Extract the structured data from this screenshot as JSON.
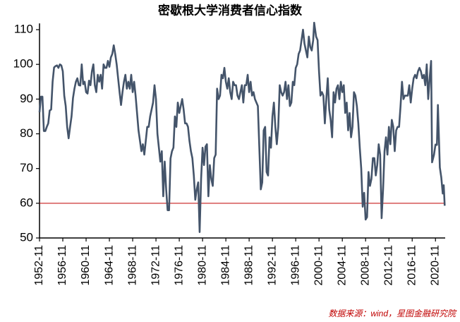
{
  "chart_data": {
    "type": "line",
    "title": "密歇根大学消费者信心指数",
    "source": "数据来源：wind，星图金融研究院",
    "x": [
      "1952-11",
      "1953-02",
      "1953-05",
      "1953-08",
      "1953-11",
      "1954-02",
      "1954-05",
      "1954-08",
      "1954-11",
      "1955-02",
      "1955-05",
      "1955-08",
      "1955-11",
      "1956-02",
      "1956-05",
      "1956-08",
      "1956-11",
      "1957-02",
      "1957-05",
      "1957-08",
      "1957-11",
      "1958-02",
      "1958-05",
      "1958-08",
      "1958-11",
      "1959-02",
      "1959-05",
      "1959-08",
      "1959-11",
      "1960-02",
      "1960-05",
      "1960-08",
      "1960-11",
      "1961-02",
      "1961-05",
      "1961-08",
      "1961-11",
      "1962-02",
      "1962-05",
      "1962-08",
      "1962-11",
      "1963-02",
      "1963-05",
      "1963-08",
      "1963-11",
      "1964-02",
      "1964-05",
      "1964-08",
      "1964-11",
      "1965-02",
      "1965-05",
      "1965-08",
      "1965-11",
      "1966-02",
      "1966-05",
      "1966-08",
      "1966-11",
      "1967-02",
      "1967-05",
      "1967-08",
      "1967-11",
      "1968-02",
      "1968-05",
      "1968-08",
      "1968-11",
      "1969-02",
      "1969-05",
      "1969-08",
      "1969-11",
      "1970-02",
      "1970-05",
      "1970-08",
      "1970-11",
      "1971-02",
      "1971-05",
      "1971-08",
      "1971-11",
      "1972-02",
      "1972-05",
      "1972-08",
      "1972-11",
      "1973-02",
      "1973-05",
      "1973-08",
      "1973-11",
      "1974-02",
      "1974-05",
      "1974-08",
      "1974-11",
      "1975-02",
      "1975-05",
      "1975-08",
      "1975-11",
      "1976-02",
      "1976-05",
      "1976-08",
      "1976-11",
      "1977-02",
      "1977-05",
      "1977-08",
      "1977-11",
      "1978-02",
      "1978-05",
      "1978-08",
      "1978-11",
      "1979-02",
      "1979-05",
      "1979-08",
      "1979-11",
      "1980-02",
      "1980-05",
      "1980-08",
      "1980-11",
      "1981-02",
      "1981-05",
      "1981-08",
      "1981-11",
      "1982-02",
      "1982-05",
      "1982-08",
      "1982-11",
      "1983-02",
      "1983-05",
      "1983-08",
      "1983-11",
      "1984-02",
      "1984-05",
      "1984-08",
      "1984-11",
      "1985-02",
      "1985-05",
      "1985-08",
      "1985-11",
      "1986-02",
      "1986-05",
      "1986-08",
      "1986-11",
      "1987-02",
      "1987-05",
      "1987-08",
      "1987-11",
      "1988-02",
      "1988-05",
      "1988-08",
      "1988-11",
      "1989-02",
      "1989-05",
      "1989-08",
      "1989-11",
      "1990-02",
      "1990-05",
      "1990-08",
      "1990-11",
      "1991-02",
      "1991-05",
      "1991-08",
      "1991-11",
      "1992-02",
      "1992-05",
      "1992-08",
      "1992-11",
      "1993-02",
      "1993-05",
      "1993-08",
      "1993-11",
      "1994-02",
      "1994-05",
      "1994-08",
      "1994-11",
      "1995-02",
      "1995-05",
      "1995-08",
      "1995-11",
      "1996-02",
      "1996-05",
      "1996-08",
      "1996-11",
      "1997-02",
      "1997-05",
      "1997-08",
      "1997-11",
      "1998-02",
      "1998-05",
      "1998-08",
      "1998-11",
      "1999-02",
      "1999-05",
      "1999-08",
      "1999-11",
      "2000-01",
      "2000-05",
      "2000-08",
      "2000-11",
      "2001-02",
      "2001-05",
      "2001-08",
      "2001-11",
      "2002-02",
      "2002-05",
      "2002-08",
      "2002-11",
      "2003-02",
      "2003-05",
      "2003-08",
      "2003-11",
      "2004-02",
      "2004-05",
      "2004-08",
      "2004-11",
      "2005-02",
      "2005-05",
      "2005-08",
      "2005-11",
      "2006-02",
      "2006-05",
      "2006-08",
      "2006-11",
      "2007-02",
      "2007-05",
      "2007-08",
      "2007-11",
      "2008-02",
      "2008-05",
      "2008-08",
      "2008-11",
      "2009-02",
      "2009-05",
      "2009-08",
      "2009-11",
      "2010-02",
      "2010-05",
      "2010-08",
      "2010-11",
      "2011-02",
      "2011-05",
      "2011-08",
      "2011-11",
      "2012-02",
      "2012-05",
      "2012-08",
      "2012-11",
      "2013-02",
      "2013-05",
      "2013-08",
      "2013-11",
      "2014-02",
      "2014-05",
      "2014-08",
      "2014-11",
      "2015-02",
      "2015-05",
      "2015-08",
      "2015-11",
      "2016-02",
      "2016-05",
      "2016-08",
      "2016-11",
      "2017-02",
      "2017-05",
      "2017-08",
      "2017-11",
      "2018-02",
      "2018-05",
      "2018-08",
      "2018-11",
      "2019-02",
      "2019-05",
      "2019-08",
      "2019-11",
      "2020-02",
      "2020-04",
      "2020-08",
      "2020-11",
      "2021-02",
      "2021-04",
      "2021-08",
      "2021-11",
      "2022-02",
      "2022-04",
      "2022-06"
    ],
    "series": [
      {
        "color": "#44546a",
        "values": [
          86.2,
          90.7,
          90.7,
          80.8,
          80.8,
          82,
          83,
          86.7,
          87,
          95,
          99.1,
          99.5,
          99.7,
          99,
          100,
          99.7,
          98,
          91,
          88,
          82,
          78.7,
          82,
          85,
          90.3,
          93,
          95,
          96,
          94,
          93.9,
          100,
          94.3,
          95,
          92,
          91.6,
          95.3,
          94,
          98,
          100,
          94,
          92,
          97,
          95,
          97,
          93,
          100,
          99,
          99,
          101,
          99.3,
          102,
          103,
          105.5,
          103,
          100,
          96,
          92,
          88.3,
          92,
          95,
          97,
          93,
          95,
          93,
          97,
          92,
          95,
          91,
          86,
          81,
          78,
          75,
          77,
          74,
          78,
          82,
          82,
          85,
          87,
          89,
          94,
          90,
          80,
          76,
          72,
          75,
          62,
          72,
          64,
          58,
          58,
          72.9,
          75,
          76,
          85,
          82,
          89,
          86,
          88,
          90,
          87,
          83,
          83,
          82,
          78,
          75,
          73,
          68,
          61,
          64,
          66,
          51.7,
          67,
          76,
          71,
          76.3,
          77,
          62,
          71,
          67,
          65,
          73,
          74,
          93,
          90,
          91,
          97,
          96,
          99,
          95,
          93,
          96,
          92,
          90,
          95,
          94,
          94,
          91,
          90,
          92,
          94,
          89,
          94,
          94,
          97,
          92,
          95,
          91,
          92,
          90,
          89,
          88,
          76,
          64,
          66,
          81,
          82,
          69,
          68,
          79,
          76,
          85,
          89,
          82,
          77,
          82,
          94,
          92,
          91,
          92,
          95,
          90,
          94,
          88,
          89,
          95,
          94,
          99,
          100,
          103,
          104,
          107,
          110,
          106,
          104,
          102,
          108,
          105,
          104,
          107,
          112,
          108,
          107,
          98,
          91,
          92,
          91,
          83,
          90,
          96,
          87,
          84,
          79,
          92,
          89,
          93,
          94,
          90,
          95,
          92,
          94,
          86,
          89,
          81,
          86,
          79,
          82,
          92,
          91,
          88,
          83,
          76,
          70,
          59,
          63,
          55.3,
          56,
          69,
          65,
          67,
          73,
          73,
          68,
          71,
          77,
          74,
          55.7,
          64,
          75,
          79,
          74,
          82,
          77,
          84,
          82,
          75,
          81,
          82,
          82,
          88,
          95,
          90,
          91,
          91,
          91,
          94,
          89,
          93,
          96,
          97,
          96,
          98,
          99,
          98,
          96,
          97,
          94,
          100,
          90,
          96,
          101,
          71.8,
          74,
          76.9,
          76.8,
          88.3,
          70.3,
          67.4,
          62.8,
          65.2,
          59.3
        ]
      }
    ],
    "xlim": [
      "1952-11",
      "2022-07"
    ],
    "xticks": [
      "1952-11",
      "1956-11",
      "1960-11",
      "1964-11",
      "1968-11",
      "1972-11",
      "1976-11",
      "1980-11",
      "1984-11",
      "1988-11",
      "1992-11",
      "1996-11",
      "2000-11",
      "2004-11",
      "2008-11",
      "2012-11",
      "2016-11",
      "2020-11"
    ],
    "ylim": [
      50,
      111
    ],
    "yticks": [
      50,
      60,
      70,
      80,
      90,
      100,
      110
    ],
    "hline": {
      "value": 60,
      "color": "#c00000"
    },
    "grid": false
  }
}
